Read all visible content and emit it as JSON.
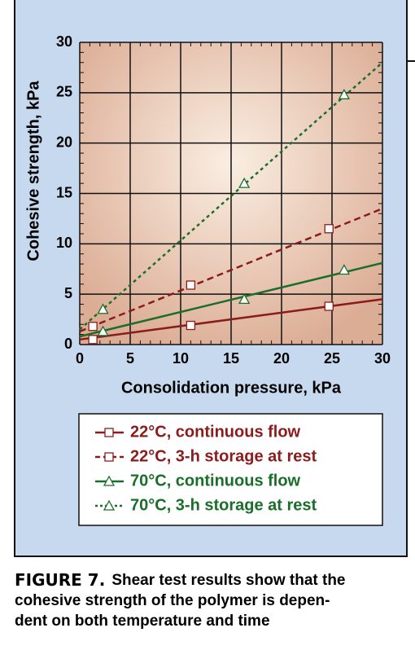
{
  "chart_data": {
    "type": "line",
    "x_label": "Consolidation pressure, kPa",
    "y_label": "Cohesive strength, kPa",
    "xlim": [
      0,
      30
    ],
    "ylim": [
      0,
      30
    ],
    "xticks": [
      0,
      5,
      10,
      15,
      20,
      25,
      30
    ],
    "yticks": [
      0,
      5,
      10,
      15,
      20,
      25,
      30
    ],
    "minor_tick_step": 1,
    "grid": true,
    "series": [
      {
        "name": "22°C, continuous flow",
        "color": "#8b1c1c",
        "line_style": "solid",
        "marker": "square",
        "x": [
          1.3,
          11,
          24.7
        ],
        "values": [
          0.5,
          1.9,
          3.8
        ],
        "trend": {
          "x": [
            0,
            30
          ],
          "values": [
            0.5,
            4.5
          ]
        }
      },
      {
        "name": "22°C, 3-h storage at rest",
        "color": "#8b1c1c",
        "line_style": "dashed",
        "marker": "square",
        "x": [
          1.3,
          11,
          24.7
        ],
        "values": [
          1.8,
          5.9,
          11.5
        ],
        "trend": {
          "x": [
            0,
            30
          ],
          "values": [
            1.3,
            13.5
          ]
        }
      },
      {
        "name": "70°C, continuous flow",
        "color": "#1a6e2a",
        "line_style": "solid",
        "marker": "triangle",
        "x": [
          2.3,
          16.3,
          26.2
        ],
        "values": [
          1.3,
          4.5,
          7.4
        ],
        "trend": {
          "x": [
            0,
            30
          ],
          "values": [
            0.8,
            8.1
          ]
        }
      },
      {
        "name": "70°C, 3-h storage at rest",
        "color": "#1a6e2a",
        "line_style": "dotted",
        "marker": "triangle",
        "x": [
          2.3,
          16.3,
          26.2
        ],
        "values": [
          3.5,
          16,
          24.8
        ],
        "trend": {
          "x": [
            0,
            30
          ],
          "values": [
            1.5,
            28
          ]
        }
      }
    ]
  },
  "caption": {
    "label": "FIGURE 7.",
    "lines": [
      "Shear test results show that the",
      "cohesive strength of the polymer is depen-",
      "dent on both temperature and time"
    ]
  }
}
